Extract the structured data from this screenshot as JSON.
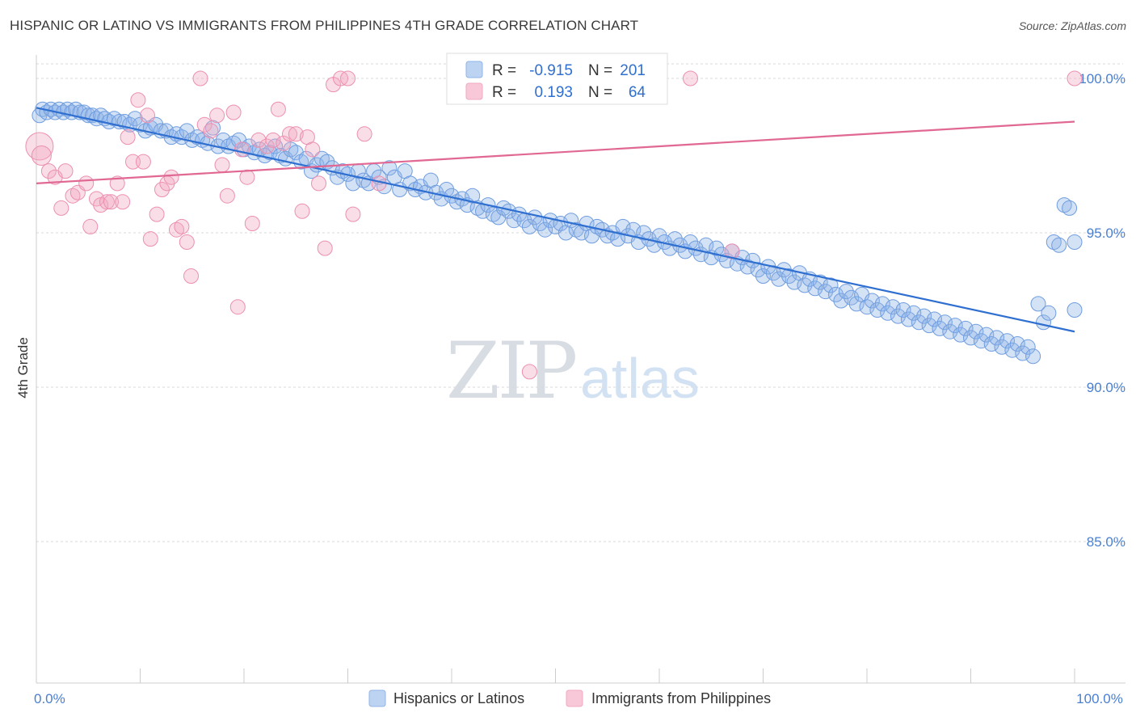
{
  "title": "HISPANIC OR LATINO VS IMMIGRANTS FROM PHILIPPINES 4TH GRADE CORRELATION CHART",
  "source": "Source: ZipAtlas.com",
  "watermark": {
    "zip": "ZIP",
    "atlas": "atlas"
  },
  "legend_top": [
    {
      "r_label": "R =",
      "r_value": "-0.915",
      "n_label": "N =",
      "n_value": "201",
      "color": "#8fb4e8"
    },
    {
      "r_label": "R =",
      "r_value": "0.193",
      "n_label": "N =",
      "n_value": "64",
      "color": "#f2a8c0"
    }
  ],
  "legend_bottom": [
    {
      "label": "Hispanics or Latinos",
      "color": "#8fb4e8"
    },
    {
      "label": "Immigrants from Philippines",
      "color": "#f2a8c0"
    }
  ],
  "chart_data": {
    "type": "scatter",
    "ylabel": "4th Grade",
    "xlim": [
      0,
      100
    ],
    "ylim": [
      80.0,
      100.8
    ],
    "y_ticks": [
      {
        "value": 100,
        "label": "100.0%"
      },
      {
        "value": 95,
        "label": "95.0%"
      },
      {
        "value": 90,
        "label": "90.0%"
      },
      {
        "value": 85,
        "label": "85.0%"
      }
    ],
    "x_ticks": [
      {
        "value": 0,
        "label": "0.0%"
      },
      {
        "value": 100,
        "label": "100.0%"
      }
    ],
    "grid": true,
    "series": [
      {
        "name": "Hispanics or Latinos",
        "color": "#8fb4e8",
        "stroke": "#6f9ddf",
        "trend": {
          "x": [
            0,
            100
          ],
          "y": [
            99.05,
            91.8
          ],
          "color": "#2f6fd0"
        },
        "points": [
          [
            0.3,
            98.8
          ],
          [
            0.6,
            99.0
          ],
          [
            1.0,
            98.9
          ],
          [
            1.4,
            99.0
          ],
          [
            1.8,
            98.9
          ],
          [
            2.2,
            99.0
          ],
          [
            2.6,
            98.9
          ],
          [
            3.0,
            99.0
          ],
          [
            3.4,
            98.9
          ],
          [
            3.8,
            99.0
          ],
          [
            4.2,
            98.9
          ],
          [
            4.6,
            98.9
          ],
          [
            5.0,
            98.8
          ],
          [
            5.4,
            98.8
          ],
          [
            5.8,
            98.7
          ],
          [
            6.2,
            98.8
          ],
          [
            6.6,
            98.7
          ],
          [
            7.0,
            98.6
          ],
          [
            7.5,
            98.7
          ],
          [
            8.0,
            98.6
          ],
          [
            8.5,
            98.6
          ],
          [
            9.0,
            98.5
          ],
          [
            9.5,
            98.7
          ],
          [
            10.0,
            98.5
          ],
          [
            10.5,
            98.3
          ],
          [
            11.0,
            98.4
          ],
          [
            11.5,
            98.5
          ],
          [
            12.0,
            98.3
          ],
          [
            12.5,
            98.3
          ],
          [
            13.0,
            98.1
          ],
          [
            13.5,
            98.2
          ],
          [
            14.0,
            98.1
          ],
          [
            14.5,
            98.3
          ],
          [
            15.0,
            98.0
          ],
          [
            15.5,
            98.1
          ],
          [
            16.0,
            98.0
          ],
          [
            16.5,
            97.9
          ],
          [
            17.0,
            98.4
          ],
          [
            17.5,
            97.8
          ],
          [
            18.0,
            98.0
          ],
          [
            18.5,
            97.8
          ],
          [
            19.0,
            97.9
          ],
          [
            19.5,
            98.0
          ],
          [
            20.0,
            97.7
          ],
          [
            20.5,
            97.8
          ],
          [
            21.0,
            97.6
          ],
          [
            21.5,
            97.7
          ],
          [
            22.0,
            97.5
          ],
          [
            22.5,
            97.6
          ],
          [
            23.0,
            97.8
          ],
          [
            23.5,
            97.5
          ],
          [
            24.0,
            97.4
          ],
          [
            24.5,
            97.7
          ],
          [
            25.0,
            97.6
          ],
          [
            25.5,
            97.3
          ],
          [
            26.0,
            97.4
          ],
          [
            26.5,
            97.0
          ],
          [
            27.0,
            97.2
          ],
          [
            27.5,
            97.4
          ],
          [
            28.0,
            97.3
          ],
          [
            28.5,
            97.1
          ],
          [
            29.0,
            96.8
          ],
          [
            29.5,
            97.0
          ],
          [
            30.0,
            96.9
          ],
          [
            30.5,
            96.6
          ],
          [
            31.0,
            97.0
          ],
          [
            31.5,
            96.7
          ],
          [
            32.0,
            96.6
          ],
          [
            32.5,
            97.0
          ],
          [
            33.0,
            96.8
          ],
          [
            33.5,
            96.5
          ],
          [
            34.0,
            97.1
          ],
          [
            34.5,
            96.8
          ],
          [
            35.0,
            96.4
          ],
          [
            35.5,
            97.0
          ],
          [
            36.0,
            96.6
          ],
          [
            36.5,
            96.4
          ],
          [
            37.0,
            96.5
          ],
          [
            37.5,
            96.3
          ],
          [
            38.0,
            96.7
          ],
          [
            38.5,
            96.3
          ],
          [
            39.0,
            96.1
          ],
          [
            39.5,
            96.4
          ],
          [
            40.0,
            96.2
          ],
          [
            40.5,
            96.0
          ],
          [
            41.0,
            96.1
          ],
          [
            41.5,
            95.9
          ],
          [
            42.0,
            96.2
          ],
          [
            42.5,
            95.8
          ],
          [
            43.0,
            95.7
          ],
          [
            43.5,
            95.9
          ],
          [
            44.0,
            95.6
          ],
          [
            44.5,
            95.5
          ],
          [
            45.0,
            95.8
          ],
          [
            45.5,
            95.7
          ],
          [
            46.0,
            95.4
          ],
          [
            46.5,
            95.6
          ],
          [
            47.0,
            95.4
          ],
          [
            47.5,
            95.2
          ],
          [
            48.0,
            95.5
          ],
          [
            48.5,
            95.3
          ],
          [
            49.0,
            95.1
          ],
          [
            49.5,
            95.4
          ],
          [
            50.0,
            95.2
          ],
          [
            50.5,
            95.3
          ],
          [
            51.0,
            95.0
          ],
          [
            51.5,
            95.4
          ],
          [
            52.0,
            95.1
          ],
          [
            52.5,
            95.0
          ],
          [
            53.0,
            95.3
          ],
          [
            53.5,
            94.9
          ],
          [
            54.0,
            95.2
          ],
          [
            54.5,
            95.1
          ],
          [
            55.0,
            94.9
          ],
          [
            55.5,
            95.0
          ],
          [
            56.0,
            94.8
          ],
          [
            56.5,
            95.2
          ],
          [
            57.0,
            94.9
          ],
          [
            57.5,
            95.1
          ],
          [
            58.0,
            94.7
          ],
          [
            58.5,
            95.0
          ],
          [
            59.0,
            94.8
          ],
          [
            59.5,
            94.6
          ],
          [
            60.0,
            94.9
          ],
          [
            60.5,
            94.7
          ],
          [
            61.0,
            94.5
          ],
          [
            61.5,
            94.8
          ],
          [
            62.0,
            94.6
          ],
          [
            62.5,
            94.4
          ],
          [
            63.0,
            94.7
          ],
          [
            63.5,
            94.5
          ],
          [
            64.0,
            94.3
          ],
          [
            64.5,
            94.6
          ],
          [
            65.0,
            94.2
          ],
          [
            65.5,
            94.5
          ],
          [
            66.0,
            94.3
          ],
          [
            66.5,
            94.1
          ],
          [
            67.0,
            94.4
          ],
          [
            67.5,
            94.0
          ],
          [
            68.0,
            94.2
          ],
          [
            68.5,
            93.9
          ],
          [
            69.0,
            94.1
          ],
          [
            69.5,
            93.8
          ],
          [
            70.0,
            93.6
          ],
          [
            70.5,
            93.9
          ],
          [
            71.0,
            93.7
          ],
          [
            71.5,
            93.5
          ],
          [
            72.0,
            93.8
          ],
          [
            72.5,
            93.6
          ],
          [
            73.0,
            93.4
          ],
          [
            73.5,
            93.7
          ],
          [
            74.0,
            93.3
          ],
          [
            74.5,
            93.5
          ],
          [
            75.0,
            93.2
          ],
          [
            75.5,
            93.4
          ],
          [
            76.0,
            93.1
          ],
          [
            76.5,
            93.3
          ],
          [
            77.0,
            93.0
          ],
          [
            77.5,
            92.8
          ],
          [
            78.0,
            93.1
          ],
          [
            78.5,
            92.9
          ],
          [
            79.0,
            92.7
          ],
          [
            79.5,
            93.0
          ],
          [
            80.0,
            92.6
          ],
          [
            80.5,
            92.8
          ],
          [
            81.0,
            92.5
          ],
          [
            81.5,
            92.7
          ],
          [
            82.0,
            92.4
          ],
          [
            82.5,
            92.6
          ],
          [
            83.0,
            92.3
          ],
          [
            83.5,
            92.5
          ],
          [
            84.0,
            92.2
          ],
          [
            84.5,
            92.4
          ],
          [
            85.0,
            92.1
          ],
          [
            85.5,
            92.3
          ],
          [
            86.0,
            92.0
          ],
          [
            86.5,
            92.2
          ],
          [
            87.0,
            91.9
          ],
          [
            87.5,
            92.1
          ],
          [
            88.0,
            91.8
          ],
          [
            88.5,
            92.0
          ],
          [
            89.0,
            91.7
          ],
          [
            89.5,
            91.9
          ],
          [
            90.0,
            91.6
          ],
          [
            90.5,
            91.8
          ],
          [
            91.0,
            91.5
          ],
          [
            91.5,
            91.7
          ],
          [
            92.0,
            91.4
          ],
          [
            92.5,
            91.6
          ],
          [
            93.0,
            91.3
          ],
          [
            93.5,
            91.5
          ],
          [
            94.0,
            91.2
          ],
          [
            94.5,
            91.4
          ],
          [
            95.0,
            91.1
          ],
          [
            95.5,
            91.3
          ],
          [
            96.0,
            91.0
          ],
          [
            96.5,
            92.7
          ],
          [
            97.0,
            92.1
          ],
          [
            97.5,
            92.4
          ],
          [
            98.0,
            94.7
          ],
          [
            98.5,
            94.6
          ],
          [
            99.0,
            95.9
          ],
          [
            99.5,
            95.8
          ],
          [
            100.0,
            94.7
          ],
          [
            100.0,
            92.5
          ]
        ]
      },
      {
        "name": "Immigrants from Philippines",
        "color": "#f2a8c0",
        "stroke": "#ec8fb0",
        "trend": {
          "x": [
            0,
            100
          ],
          "y": [
            96.6,
            98.6
          ],
          "color": "#e06892"
        },
        "points": [
          [
            0.3,
            97.8
          ],
          [
            0.5,
            97.5
          ],
          [
            1.2,
            97.0
          ],
          [
            1.8,
            96.8
          ],
          [
            2.4,
            95.8
          ],
          [
            2.8,
            97.0
          ],
          [
            3.5,
            96.2
          ],
          [
            4.0,
            96.3
          ],
          [
            4.8,
            96.6
          ],
          [
            5.2,
            95.2
          ],
          [
            5.8,
            96.1
          ],
          [
            6.2,
            95.9
          ],
          [
            6.8,
            96.0
          ],
          [
            7.2,
            96.0
          ],
          [
            7.8,
            96.6
          ],
          [
            8.3,
            96.0
          ],
          [
            8.8,
            98.1
          ],
          [
            9.3,
            97.3
          ],
          [
            9.8,
            99.3
          ],
          [
            10.3,
            97.3
          ],
          [
            10.7,
            98.8
          ],
          [
            11.0,
            94.8
          ],
          [
            11.6,
            95.6
          ],
          [
            12.1,
            96.4
          ],
          [
            12.6,
            96.6
          ],
          [
            13.0,
            96.8
          ],
          [
            13.5,
            95.1
          ],
          [
            14.0,
            95.2
          ],
          [
            14.5,
            94.7
          ],
          [
            14.9,
            93.6
          ],
          [
            15.8,
            100.0
          ],
          [
            16.2,
            98.5
          ],
          [
            16.8,
            98.3
          ],
          [
            17.4,
            98.8
          ],
          [
            17.9,
            97.2
          ],
          [
            18.4,
            96.2
          ],
          [
            19.0,
            98.9
          ],
          [
            19.4,
            92.6
          ],
          [
            19.8,
            97.7
          ],
          [
            20.3,
            96.8
          ],
          [
            20.8,
            95.3
          ],
          [
            21.4,
            98.0
          ],
          [
            22.2,
            97.8
          ],
          [
            22.8,
            98.0
          ],
          [
            23.3,
            99.0
          ],
          [
            23.8,
            97.9
          ],
          [
            24.4,
            98.2
          ],
          [
            25.0,
            98.2
          ],
          [
            25.6,
            95.7
          ],
          [
            26.1,
            98.1
          ],
          [
            26.6,
            97.7
          ],
          [
            27.2,
            96.6
          ],
          [
            27.8,
            94.5
          ],
          [
            28.6,
            99.8
          ],
          [
            29.3,
            100.0
          ],
          [
            30.0,
            100.0
          ],
          [
            30.5,
            95.6
          ],
          [
            31.6,
            98.2
          ],
          [
            33.0,
            96.6
          ],
          [
            47.5,
            90.5
          ],
          [
            60.0,
            100.0
          ],
          [
            63.0,
            100.0
          ],
          [
            67.0,
            94.4
          ],
          [
            100.0,
            100.0
          ]
        ]
      }
    ]
  }
}
